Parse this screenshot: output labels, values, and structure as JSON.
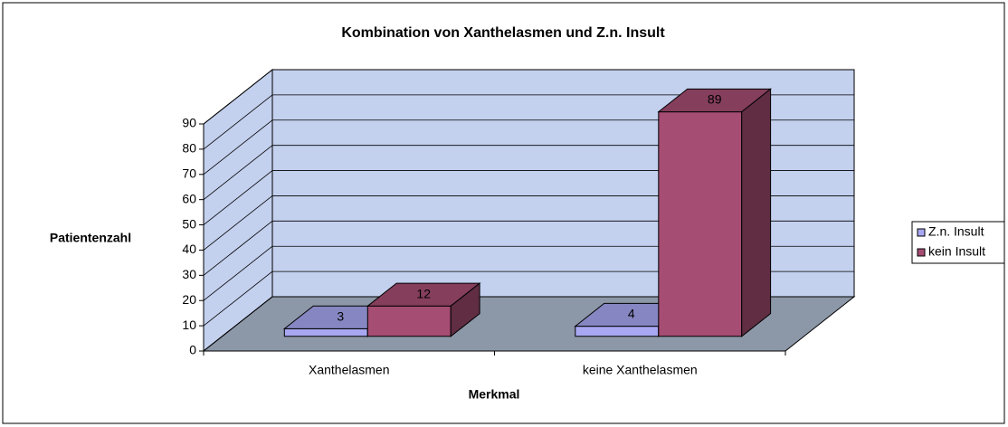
{
  "chart_data": {
    "type": "bar3d",
    "title": "Kombination von Xanthelasmen und Z.n. Insult",
    "x_label": "Merkmal",
    "y_label": "Patientenzahl",
    "categories": [
      "Xanthelasmen",
      "keine Xanthelasmen"
    ],
    "series": [
      {
        "name": "Z.n. Insult",
        "color": "#a7a7f2",
        "values": [
          3,
          4
        ]
      },
      {
        "name": "kein Insult",
        "color": "#a64d73",
        "values": [
          12,
          89
        ]
      }
    ],
    "ylim": [
      0,
      90
    ],
    "yticks": [
      0,
      10,
      20,
      30,
      40,
      50,
      60,
      70,
      80,
      90
    ],
    "grid": true,
    "legend": "right"
  }
}
